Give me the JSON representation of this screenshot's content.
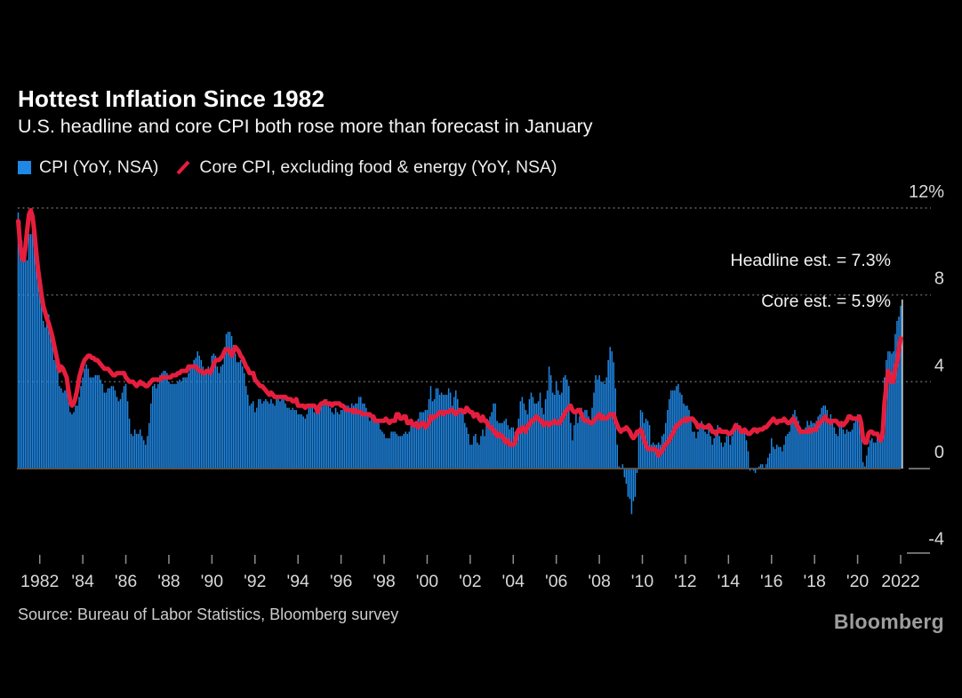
{
  "header": {
    "title": "Hottest Inflation Since 1982",
    "subtitle": "U.S. headline and core CPI both rose more than forecast in January"
  },
  "legend": {
    "cpi_label": "CPI (YoY, NSA)",
    "core_label": "Core CPI, excluding food & energy (YoY, NSA)"
  },
  "footer": {
    "source": "Source: Bureau of Labor Statistics, Bloomberg survey",
    "brand": "Bloomberg"
  },
  "chart_data": {
    "type": "bar",
    "frequency": "monthly",
    "x_start": "1981-01",
    "x_end": "2022-01",
    "ylim": [
      -4,
      12
    ],
    "grid": "dotted horizontal",
    "legend_position": "top-left",
    "estimates": {
      "headline": 7.3,
      "core": 5.9
    },
    "latest": {
      "headline": 7.5,
      "core": 6.0
    },
    "annotations": [
      {
        "text": "Headline est. = 7.3%",
        "x_end": 1002,
        "y": 299
      },
      {
        "text": "Core est. = 5.9%",
        "x_end": 1002,
        "y": 345
      }
    ],
    "y_axis": {
      "ticks": [
        {
          "label": "12%",
          "value": 12,
          "style": "dotted"
        },
        {
          "label": "8",
          "value": 8,
          "style": "dotted"
        },
        {
          "label": "4",
          "value": 4,
          "style": "dotted"
        },
        {
          "label": "0",
          "value": 0,
          "style": "baseline"
        },
        {
          "label": "-4",
          "value": -4,
          "style": "edge"
        }
      ]
    },
    "x_axis": {
      "tick_years": [
        1982,
        1984,
        1986,
        1988,
        1990,
        1992,
        1994,
        1996,
        1998,
        2000,
        2002,
        2004,
        2006,
        2008,
        2010,
        2012,
        2014,
        2016,
        2018,
        2020,
        2022
      ],
      "tick_labels": [
        "1982",
        "'84",
        "'86",
        "'88",
        "'90",
        "'92",
        "'94",
        "'96",
        "'98",
        "'00",
        "'02",
        "'04",
        "'06",
        "'08",
        "'10",
        "'12",
        "'14",
        "'16",
        "'18",
        "'20",
        "2022"
      ]
    },
    "last_value_marker": {
      "series": "CPI (YoY, NSA)",
      "value": 7.5,
      "color": "#c4c9cf"
    },
    "colors": {
      "bar_blue": "#1f87e4",
      "line_red": "#e61e3e",
      "grid_dotted": "#5a5a5a",
      "baseline": "#55524a",
      "axis_gray": "#8f8f8f",
      "axis_text": "#d8d8d8",
      "annotation_text": "#f1f1f1"
    },
    "series": [
      {
        "name": "CPI (YoY, NSA)",
        "type": "bar",
        "color": "#1f87e4",
        "values": [
          11.8,
          11.4,
          10.5,
          10.0,
          9.8,
          9.6,
          10.8,
          10.8,
          11.0,
          10.1,
          9.6,
          8.9,
          8.4,
          7.6,
          6.8,
          6.5,
          6.7,
          7.1,
          6.4,
          5.9,
          5.0,
          5.1,
          4.6,
          3.8,
          3.7,
          3.5,
          3.6,
          3.9,
          3.5,
          2.6,
          2.5,
          2.6,
          2.9,
          2.9,
          3.3,
          3.8,
          4.2,
          4.6,
          4.8,
          4.6,
          4.2,
          4.2,
          4.2,
          4.3,
          4.3,
          4.3,
          4.1,
          3.9,
          3.5,
          3.5,
          3.7,
          3.7,
          3.8,
          3.8,
          3.6,
          3.3,
          3.1,
          3.2,
          3.5,
          3.8,
          3.9,
          3.1,
          2.3,
          1.6,
          1.5,
          1.8,
          1.6,
          1.6,
          1.8,
          1.5,
          1.3,
          1.1,
          1.5,
          2.1,
          3.0,
          3.8,
          3.9,
          3.7,
          3.9,
          4.3,
          4.4,
          4.5,
          4.5,
          4.4,
          4.0,
          3.9,
          3.9,
          3.9,
          3.9,
          4.0,
          4.1,
          4.0,
          4.2,
          4.2,
          4.2,
          4.4,
          4.7,
          4.8,
          5.0,
          5.1,
          5.4,
          5.2,
          5.0,
          4.7,
          4.3,
          4.5,
          4.7,
          4.6,
          5.2,
          5.3,
          5.2,
          4.7,
          4.4,
          4.7,
          4.8,
          5.6,
          6.2,
          6.3,
          6.3,
          6.1,
          5.7,
          5.3,
          4.9,
          4.9,
          5.0,
          4.7,
          4.4,
          3.8,
          3.4,
          2.9,
          3.0,
          3.1,
          2.6,
          2.8,
          3.2,
          3.2,
          3.0,
          3.1,
          3.2,
          3.1,
          3.0,
          3.2,
          3.0,
          2.9,
          3.3,
          3.2,
          3.1,
          3.2,
          3.2,
          3.0,
          2.8,
          2.8,
          2.7,
          2.8,
          2.7,
          2.7,
          2.5,
          2.5,
          2.5,
          2.4,
          2.3,
          2.5,
          2.8,
          2.9,
          3.0,
          2.6,
          2.7,
          2.7,
          2.8,
          2.9,
          2.9,
          3.1,
          3.2,
          3.0,
          2.8,
          2.6,
          2.5,
          2.8,
          2.6,
          2.5,
          2.7,
          2.7,
          2.8,
          2.9,
          2.9,
          2.8,
          3.0,
          2.9,
          3.0,
          3.0,
          3.3,
          3.3,
          3.0,
          3.0,
          2.8,
          2.5,
          2.2,
          2.3,
          2.2,
          2.2,
          2.2,
          2.1,
          1.8,
          1.7,
          1.6,
          1.4,
          1.4,
          1.4,
          1.7,
          1.7,
          1.7,
          1.6,
          1.5,
          1.5,
          1.5,
          1.6,
          1.7,
          1.6,
          1.7,
          2.3,
          2.1,
          2.0,
          2.1,
          2.3,
          2.6,
          2.6,
          2.6,
          2.7,
          2.7,
          3.2,
          3.8,
          3.1,
          3.2,
          3.7,
          3.7,
          3.4,
          3.5,
          3.4,
          3.4,
          3.4,
          3.7,
          3.5,
          2.9,
          3.3,
          3.6,
          3.2,
          2.7,
          2.7,
          2.6,
          2.1,
          1.9,
          1.6,
          1.1,
          1.1,
          1.5,
          1.6,
          1.2,
          1.1,
          1.5,
          1.8,
          1.5,
          2.0,
          2.2,
          2.4,
          2.6,
          3.0,
          3.0,
          2.2,
          2.1,
          2.1,
          2.1,
          2.2,
          2.3,
          2.0,
          1.8,
          1.9,
          1.9,
          1.7,
          1.7,
          2.3,
          3.1,
          3.3,
          3.0,
          2.7,
          2.5,
          3.2,
          3.5,
          3.3,
          3.0,
          3.0,
          3.1,
          3.5,
          2.8,
          2.5,
          3.2,
          3.6,
          4.7,
          4.3,
          3.5,
          3.4,
          4.0,
          3.6,
          3.4,
          3.5,
          4.2,
          4.3,
          4.1,
          3.8,
          2.1,
          1.3,
          2.0,
          2.5,
          2.1,
          2.4,
          2.8,
          2.6,
          2.7,
          2.7,
          2.4,
          2.0,
          2.8,
          3.5,
          4.3,
          4.1,
          4.3,
          4.0,
          4.0,
          3.9,
          4.2,
          5.0,
          5.6,
          5.4,
          4.9,
          3.7,
          1.1,
          0.1,
          0.0,
          0.2,
          -0.4,
          -0.7,
          -1.3,
          -1.4,
          -2.1,
          -1.5,
          -1.3,
          -0.2,
          1.8,
          2.7,
          2.6,
          2.1,
          2.3,
          2.2,
          2.0,
          1.1,
          1.2,
          1.1,
          1.1,
          1.2,
          1.1,
          1.5,
          1.6,
          2.1,
          2.7,
          3.2,
          3.6,
          3.6,
          3.6,
          3.8,
          3.9,
          3.5,
          3.4,
          3.0,
          2.9,
          2.9,
          2.7,
          2.3,
          1.7,
          1.7,
          1.4,
          1.7,
          2.0,
          2.2,
          1.8,
          1.7,
          1.6,
          2.0,
          1.5,
          1.1,
          1.4,
          1.8,
          2.0,
          1.5,
          1.2,
          1.0,
          1.2,
          1.5,
          1.6,
          1.1,
          1.5,
          2.0,
          2.1,
          2.1,
          2.0,
          1.7,
          1.7,
          1.7,
          1.3,
          0.8,
          -0.1,
          0.0,
          -0.1,
          -0.2,
          0.0,
          0.1,
          0.2,
          0.2,
          0.0,
          0.2,
          0.5,
          0.7,
          1.4,
          1.0,
          0.9,
          1.1,
          1.0,
          1.0,
          0.8,
          1.1,
          1.5,
          1.6,
          1.7,
          2.1,
          2.5,
          2.7,
          2.4,
          2.2,
          1.9,
          1.6,
          1.7,
          1.9,
          2.2,
          2.0,
          2.2,
          2.1,
          2.1,
          2.2,
          2.4,
          2.5,
          2.8,
          2.9,
          2.9,
          2.7,
          2.3,
          2.5,
          2.2,
          1.9,
          1.6,
          1.5,
          1.9,
          2.0,
          1.8,
          1.6,
          1.8,
          1.7,
          1.7,
          1.8,
          2.1,
          2.3,
          2.5,
          2.3,
          1.5,
          0.3,
          0.1,
          0.6,
          1.0,
          1.3,
          1.4,
          1.2,
          1.2,
          1.4,
          1.4,
          1.7,
          2.6,
          4.2,
          5.0,
          5.4,
          5.4,
          5.3,
          5.4,
          6.2,
          6.8,
          7.0,
          7.5
        ]
      },
      {
        "name": "Core CPI, excluding food & energy (YoY, NSA)",
        "type": "line",
        "color": "#e61e3e",
        "values": [
          11.4,
          10.4,
          9.7,
          9.6,
          10.2,
          11.0,
          11.7,
          11.9,
          11.6,
          10.9,
          10.0,
          9.2,
          8.6,
          8.0,
          7.5,
          7.2,
          6.9,
          6.7,
          6.4,
          6.1,
          5.7,
          5.3,
          4.9,
          4.5,
          4.7,
          4.6,
          4.4,
          4.2,
          3.6,
          3.1,
          2.9,
          3.0,
          3.3,
          3.7,
          4.2,
          4.5,
          4.8,
          5.0,
          5.1,
          5.2,
          5.2,
          5.1,
          5.1,
          5.0,
          5.0,
          4.9,
          4.8,
          4.7,
          4.6,
          4.6,
          4.6,
          4.5,
          4.4,
          4.3,
          4.3,
          4.4,
          4.4,
          4.4,
          4.4,
          4.4,
          4.2,
          4.1,
          4.0,
          4.0,
          4.0,
          3.9,
          3.8,
          3.9,
          4.0,
          3.9,
          3.9,
          3.8,
          3.8,
          3.9,
          4.0,
          4.1,
          4.1,
          4.1,
          4.1,
          4.1,
          4.2,
          4.2,
          4.2,
          4.2,
          4.2,
          4.2,
          4.3,
          4.3,
          4.3,
          4.4,
          4.4,
          4.5,
          4.5,
          4.5,
          4.5,
          4.7,
          4.7,
          4.7,
          4.7,
          4.7,
          4.6,
          4.5,
          4.5,
          4.4,
          4.4,
          4.5,
          4.5,
          4.4,
          4.6,
          4.8,
          5.0,
          5.0,
          5.0,
          5.1,
          5.2,
          5.4,
          5.5,
          5.5,
          5.4,
          5.2,
          5.4,
          5.6,
          5.5,
          5.4,
          5.2,
          5.1,
          4.9,
          4.7,
          4.6,
          4.4,
          4.4,
          4.4,
          4.1,
          4.0,
          3.9,
          3.8,
          3.8,
          3.7,
          3.6,
          3.5,
          3.4,
          3.5,
          3.4,
          3.3,
          3.3,
          3.3,
          3.3,
          3.3,
          3.3,
          3.3,
          3.2,
          3.2,
          3.2,
          3.1,
          3.1,
          3.2,
          2.9,
          2.9,
          2.9,
          2.9,
          2.8,
          2.9,
          2.9,
          2.9,
          2.9,
          2.9,
          2.8,
          2.6,
          2.9,
          3.0,
          3.0,
          3.1,
          3.0,
          3.0,
          3.0,
          2.9,
          3.0,
          3.0,
          3.0,
          3.0,
          2.9,
          2.9,
          2.8,
          2.7,
          2.7,
          2.7,
          2.7,
          2.6,
          2.7,
          2.6,
          2.6,
          2.6,
          2.5,
          2.5,
          2.5,
          2.5,
          2.5,
          2.4,
          2.4,
          2.2,
          2.2,
          2.2,
          2.2,
          2.2,
          2.2,
          2.3,
          2.2,
          2.1,
          2.2,
          2.2,
          2.2,
          2.5,
          2.5,
          2.3,
          2.3,
          2.4,
          2.4,
          2.1,
          2.1,
          2.2,
          2.0,
          2.0,
          2.1,
          1.9,
          2.0,
          2.1,
          2.1,
          1.9,
          2.0,
          2.1,
          2.4,
          2.3,
          2.4,
          2.4,
          2.5,
          2.6,
          2.6,
          2.5,
          2.6,
          2.6,
          2.6,
          2.7,
          2.7,
          2.6,
          2.5,
          2.6,
          2.7,
          2.7,
          2.6,
          2.6,
          2.8,
          2.7,
          2.6,
          2.6,
          2.4,
          2.5,
          2.5,
          2.3,
          2.2,
          2.4,
          2.2,
          2.2,
          2.0,
          1.9,
          1.9,
          1.7,
          1.7,
          1.5,
          1.6,
          1.5,
          1.5,
          1.3,
          1.2,
          1.3,
          1.1,
          1.1,
          1.1,
          1.2,
          1.6,
          1.8,
          1.7,
          1.9,
          1.8,
          1.7,
          2.0,
          2.0,
          2.2,
          2.2,
          2.3,
          2.4,
          2.3,
          2.2,
          2.2,
          2.0,
          2.1,
          2.1,
          2.0,
          2.1,
          2.1,
          2.2,
          2.1,
          2.1,
          2.1,
          2.3,
          2.4,
          2.6,
          2.7,
          2.8,
          2.9,
          2.7,
          2.6,
          2.6,
          2.7,
          2.7,
          2.5,
          2.3,
          2.2,
          2.2,
          2.2,
          2.1,
          2.1,
          2.2,
          2.3,
          2.4,
          2.5,
          2.3,
          2.4,
          2.3,
          2.3,
          2.4,
          2.5,
          2.5,
          2.5,
          2.2,
          2.0,
          1.8,
          1.7,
          1.8,
          1.8,
          1.9,
          1.8,
          1.7,
          1.5,
          1.4,
          1.5,
          1.7,
          1.7,
          1.8,
          1.6,
          1.3,
          1.1,
          0.9,
          0.9,
          0.9,
          0.9,
          0.9,
          0.8,
          0.6,
          0.8,
          0.8,
          1.0,
          1.1,
          1.2,
          1.3,
          1.5,
          1.6,
          1.8,
          2.0,
          2.0,
          2.1,
          2.2,
          2.2,
          2.3,
          2.2,
          2.3,
          2.3,
          2.3,
          2.2,
          2.1,
          1.9,
          2.0,
          2.0,
          1.9,
          1.9,
          1.9,
          2.0,
          1.9,
          1.7,
          1.7,
          1.6,
          1.7,
          1.8,
          1.7,
          1.7,
          1.7,
          1.7,
          1.6,
          1.6,
          1.7,
          1.8,
          2.0,
          1.9,
          1.9,
          1.7,
          1.7,
          1.8,
          1.7,
          1.6,
          1.6,
          1.7,
          1.8,
          1.8,
          1.7,
          1.8,
          1.8,
          1.8,
          1.9,
          1.9,
          2.0,
          2.1,
          2.2,
          2.3,
          2.2,
          2.1,
          2.2,
          2.2,
          2.2,
          2.3,
          2.2,
          2.1,
          2.1,
          2.2,
          2.3,
          2.2,
          2.0,
          1.9,
          1.7,
          1.7,
          1.7,
          1.7,
          1.7,
          1.8,
          1.7,
          1.8,
          1.8,
          1.8,
          2.1,
          2.1,
          2.2,
          2.3,
          2.4,
          2.2,
          2.2,
          2.1,
          2.2,
          2.2,
          2.2,
          2.1,
          2.0,
          2.1,
          2.0,
          2.1,
          2.2,
          2.4,
          2.4,
          2.3,
          2.3,
          2.3,
          2.3,
          2.4,
          2.1,
          1.4,
          1.2,
          1.2,
          1.6,
          1.7,
          1.7,
          1.6,
          1.6,
          1.6,
          1.4,
          1.3,
          1.6,
          3.0,
          3.8,
          4.5,
          4.3,
          4.0,
          4.0,
          4.6,
          4.9,
          5.5,
          6.0
        ]
      }
    ]
  }
}
